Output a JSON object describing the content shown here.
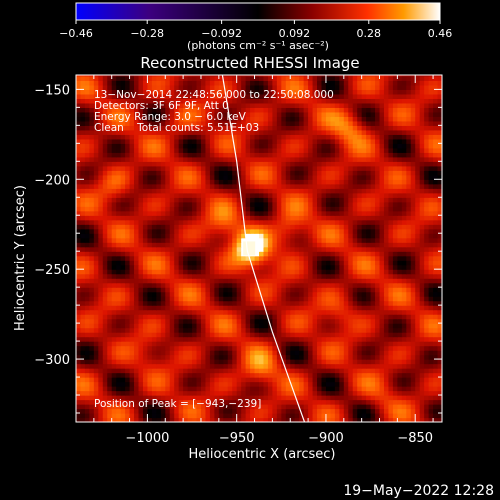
{
  "chart_data": {
    "type": "heatmap",
    "title": "Reconstructed RHESSI Image",
    "xlabel": "Heliocentric X (arcsec)",
    "ylabel": "Heliocentric Y (arcsec)",
    "xlim": [
      -1040,
      -835
    ],
    "ylim": [
      -335,
      -142
    ],
    "x_ticks": [
      {
        "value": -1000,
        "label": "−1000"
      },
      {
        "value": -950,
        "label": "−950"
      },
      {
        "value": -900,
        "label": "−900"
      },
      {
        "value": -850,
        "label": "−850"
      }
    ],
    "y_ticks": [
      {
        "value": -150,
        "label": "−150"
      },
      {
        "value": -200,
        "label": "−200"
      },
      {
        "value": -250,
        "label": "−250"
      },
      {
        "value": -300,
        "label": "−300"
      }
    ],
    "colorbar": {
      "min": -0.46,
      "max": 0.46,
      "unit_label": "(photons cm⁻² s⁻¹ asec⁻²)",
      "ticks": [
        {
          "value": -0.46,
          "label": "−0.46"
        },
        {
          "value": -0.28,
          "label": "−0.28"
        },
        {
          "value": -0.092,
          "label": "−0.092"
        },
        {
          "value": 0.092,
          "label": "0.092"
        },
        {
          "value": 0.28,
          "label": "0.28"
        },
        {
          "value": 0.46,
          "label": "0.46"
        }
      ],
      "colors": [
        "#0000ff",
        "#3c0080",
        "#000000",
        "#8c0000",
        "#ff3000",
        "#ff9a00",
        "#ffffff"
      ]
    },
    "annotations": [
      "13−Nov−2014 22:48:56.000 to 22:50:08.000",
      "Detectors: 3F 6F 9F, Att 0",
      "Energy Range: 3.0 − 6.0 keV",
      "Clean    Total counts: 5.51E+03"
    ],
    "peak_label": "Position of Peak = [−943,−239]",
    "peak": {
      "x": -943,
      "y": -239,
      "value": 0.46
    },
    "hotspots": [
      {
        "x": -943,
        "y": -240,
        "value": 0.46
      },
      {
        "x": -922,
        "y": -230,
        "value": 0.28
      },
      {
        "x": -888,
        "y": -172,
        "value": 0.26
      },
      {
        "x": -958,
        "y": -226,
        "value": 0.22
      },
      {
        "x": -1020,
        "y": -205,
        "value": 0.2
      },
      {
        "x": -938,
        "y": -307,
        "value": 0.24
      },
      {
        "x": -893,
        "y": -275,
        "value": 0.2
      },
      {
        "x": -985,
        "y": -170,
        "value": 0.18
      },
      {
        "x": -1000,
        "y": -300,
        "value": 0.15
      },
      {
        "x": -870,
        "y": -320,
        "value": 0.15
      }
    ],
    "limb_curve": [
      {
        "x": -958,
        "y": -142
      },
      {
        "x": -950,
        "y": -190
      },
      {
        "x": -944,
        "y": -240
      },
      {
        "x": -930,
        "y": -285
      },
      {
        "x": -912,
        "y": -335
      }
    ]
  },
  "footer": {
    "timestamp": "19−May−2022 12:28"
  }
}
